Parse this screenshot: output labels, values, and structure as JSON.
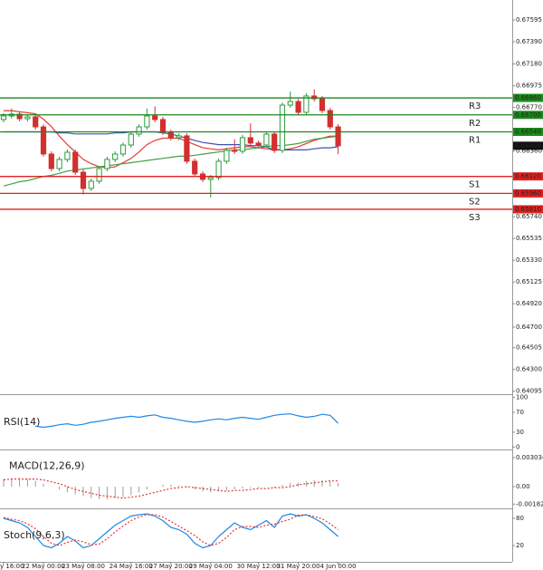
{
  "chart_data": [
    {
      "type": "candlestick",
      "categories": [
        "y 16:00",
        null,
        null,
        null,
        null,
        "22 May 00:00",
        null,
        null,
        null,
        null,
        "23 May 08:00",
        null,
        null,
        null,
        null,
        null,
        "24 May 16:00",
        null,
        null,
        null,
        null,
        "27 May 20:00",
        null,
        null,
        null,
        null,
        "29 May 04:00",
        null,
        null,
        null,
        null,
        null,
        "30 May 12:00",
        null,
        null,
        null,
        null,
        "31 May 20:00",
        null,
        null,
        null,
        null,
        "4 Jun 00:00"
      ],
      "open": [
        0.66656,
        0.6669,
        0.66707,
        0.66664,
        0.66681,
        0.66587,
        0.66331,
        0.66194,
        0.6628,
        0.66348,
        0.6616,
        0.66007,
        0.66075,
        0.66194,
        0.6628,
        0.66331,
        0.66416,
        0.66519,
        0.66587,
        0.6669,
        0.66656,
        0.66536,
        0.66485,
        0.66502,
        0.66263,
        0.66143,
        0.66092,
        0.66109,
        0.66263,
        0.66365,
        0.66357,
        0.66485,
        0.66434,
        0.66416,
        0.66519,
        0.66365,
        0.66792,
        0.66826,
        0.66724,
        0.66878,
        0.66852,
        0.66741,
        0.66587
      ],
      "high": [
        0.66715,
        0.6676,
        0.66732,
        0.66706,
        0.66706,
        0.66612,
        0.66356,
        0.66305,
        0.66373,
        0.66373,
        0.66185,
        0.661,
        0.66219,
        0.66305,
        0.66356,
        0.66441,
        0.66544,
        0.66612,
        0.6676,
        0.6678,
        0.66681,
        0.66561,
        0.66527,
        0.66527,
        0.66288,
        0.66168,
        0.66134,
        0.66288,
        0.6639,
        0.6647,
        0.6651,
        0.6662,
        0.66459,
        0.66544,
        0.66544,
        0.66817,
        0.6692,
        0.66851,
        0.66903,
        0.6694,
        0.66877,
        0.66766,
        0.66612
      ],
      "low": [
        0.6663,
        0.66665,
        0.6664,
        0.66639,
        0.66562,
        0.66306,
        0.66169,
        0.66169,
        0.66255,
        0.66135,
        0.6595,
        0.65982,
        0.6605,
        0.66169,
        0.66255,
        0.66306,
        0.66391,
        0.66494,
        0.66562,
        0.66631,
        0.66511,
        0.6646,
        0.6646,
        0.66238,
        0.66118,
        0.66067,
        0.6592,
        0.66084,
        0.66238,
        0.66332,
        0.66332,
        0.66409,
        0.66391,
        0.66391,
        0.6634,
        0.6634,
        0.66767,
        0.66699,
        0.66699,
        0.66827,
        0.66716,
        0.66562,
        0.6633
      ],
      "close": [
        0.6669,
        0.66707,
        0.66664,
        0.66681,
        0.66587,
        0.66331,
        0.66194,
        0.6628,
        0.66348,
        0.6616,
        0.66007,
        0.66075,
        0.66194,
        0.6628,
        0.66331,
        0.66416,
        0.66519,
        0.66587,
        0.6669,
        0.66656,
        0.66536,
        0.66485,
        0.66502,
        0.66263,
        0.66143,
        0.66092,
        0.66109,
        0.66263,
        0.66365,
        0.66357,
        0.66485,
        0.66434,
        0.66416,
        0.66519,
        0.66365,
        0.66792,
        0.66826,
        0.66724,
        0.66878,
        0.66852,
        0.66741,
        0.66587,
        0.66409
      ],
      "up_color": "#2e9a3e",
      "down_color": "#d32f2f",
      "series": [
        {
          "color": "#e53935",
          "values": [
            0.6674,
            0.6674,
            0.6673,
            0.6672,
            0.6671,
            0.6666,
            0.6659,
            0.665,
            0.6642,
            0.6635,
            0.6628,
            0.6624,
            0.6621,
            0.662,
            0.6621,
            0.6625,
            0.6629,
            0.6635,
            0.6642,
            0.6646,
            0.6648,
            0.6648,
            0.6648,
            0.6645,
            0.6642,
            0.6639,
            0.6638,
            0.6637,
            0.6638,
            0.6639,
            0.664,
            0.664,
            0.6639,
            0.6638,
            0.6637,
            0.6637,
            0.6638,
            0.664,
            0.6643,
            0.6646,
            0.6648,
            0.665,
            0.665
          ]
        },
        {
          "color": "#3f51b5",
          "values": [
            0.6654,
            0.6654,
            0.6654,
            0.6654,
            0.6654,
            0.6654,
            0.6654,
            0.6653,
            0.6653,
            0.6652,
            0.6652,
            0.6652,
            0.6652,
            0.6652,
            0.6653,
            0.6653,
            0.6654,
            0.6654,
            0.6654,
            0.6654,
            0.6653,
            0.6652,
            0.665,
            0.6648,
            0.6646,
            0.6644,
            0.6643,
            0.6642,
            0.6642,
            0.6642,
            0.6642,
            0.6641,
            0.6641,
            0.664,
            0.6637,
            0.6637,
            0.6637,
            0.6637,
            0.6637,
            0.6638,
            0.6639,
            0.6639,
            0.664
          ]
        },
        {
          "color": "#43a047",
          "values": [
            0.6603,
            0.6605,
            0.6607,
            0.6608,
            0.661,
            0.6612,
            0.6613,
            0.6615,
            0.6617,
            0.6618,
            0.6619,
            0.662,
            0.6621,
            0.6622,
            0.6623,
            0.6624,
            0.6625,
            0.6626,
            0.6627,
            0.6628,
            0.6629,
            0.663,
            0.6631,
            0.6631,
            0.6632,
            0.6633,
            0.6634,
            0.6635,
            0.6636,
            0.6637,
            0.6637,
            0.6638,
            0.6639,
            0.664,
            0.6641,
            0.6641,
            0.6642,
            0.6643,
            0.6645,
            0.6647,
            0.6648,
            0.6649,
            0.665
          ]
        }
      ],
      "levels": [
        {
          "name": "R3",
          "value": 0.6686,
          "label": "0.66860",
          "color": "#1b8a1b"
        },
        {
          "name": "R2",
          "value": 0.667,
          "label": "0.66700",
          "color": "#1b8a1b"
        },
        {
          "name": "R1",
          "value": 0.6654,
          "label": "0.66540",
          "color": "#1b8a1b"
        },
        {
          "name": "S1",
          "value": 0.6612,
          "label": "0.66120",
          "color": "#e02020"
        },
        {
          "name": "S2",
          "value": 0.6596,
          "label": "0.65960",
          "color": "#e02020"
        },
        {
          "name": "S3",
          "value": 0.6581,
          "label": "0.65810",
          "color": "#e02020"
        }
      ],
      "current": {
        "value": 0.66409,
        "label": "0.66409"
      },
      "ylim": [
        0.64067,
        0.67783
      ],
      "yticks": [
        0.67595,
        {
          "value": 0.6739,
          "label": "0.67390"
        },
        {
          "value": 0.6718,
          "label": "0.67180"
        },
        0.66975,
        {
          "value": 0.6677,
          "label": "0.66770"
        },
        {
          "value": 0.6636,
          "label": "0.66360"
        },
        {
          "value": 0.6574,
          "label": "0.65740"
        },
        0.65535,
        {
          "value": 0.6533,
          "label": "0.65330"
        },
        0.65125,
        {
          "value": 0.6492,
          "label": "0.64920"
        },
        {
          "value": 0.647,
          "label": "0.64700"
        },
        0.64505,
        {
          "value": 0.643,
          "label": "0.64300"
        },
        0.64095
      ]
    },
    {
      "type": "line",
      "title": "RSI(14)",
      "series": [
        {
          "color": "#1e88e5",
          "values": [
            null,
            null,
            null,
            null,
            42,
            40,
            42,
            45,
            47,
            44,
            46,
            50,
            52,
            55,
            58,
            60,
            62,
            60,
            63,
            65,
            60,
            58,
            55,
            52,
            50,
            52,
            55,
            57,
            55,
            58,
            60,
            58,
            56,
            60,
            64,
            66,
            67,
            63,
            60,
            62,
            66,
            64,
            48
          ]
        }
      ],
      "ylim": [
        -3,
        103
      ],
      "yticks": [
        100,
        70,
        30,
        0
      ]
    },
    {
      "type": "macd",
      "title": "MACD(12,26,9)",
      "values": [
        0.0008,
        0.0009,
        0.0009,
        0.0008,
        0.0006,
        0.0003,
        0,
        -0.0003,
        -0.0006,
        -0.0008,
        -0.001,
        -0.0012,
        -0.0013,
        -0.0013,
        -0.0012,
        -0.0011,
        -0.0009,
        -0.0006,
        -0.0003,
        0,
        0.0002,
        0.0002,
        0.0001,
        -0.0001,
        -0.0003,
        -0.0005,
        -0.0006,
        -0.0005,
        -0.0004,
        -0.0003,
        -0.0002,
        -0.0001,
        -0.0001,
        0,
        -0.0001,
        0.0002,
        0.0004,
        0.0004,
        0.0006,
        0.0007,
        0.0007,
        0.0006,
        0.0004
      ],
      "color": "#9e9e9e",
      "series": [
        {
          "color": "#e53935",
          "values": [
            0.0007,
            0.0008,
            0.0008,
            0.0008,
            0.0008,
            0.0007,
            0.0005,
            0.0003,
            0,
            -0.0003,
            -0.0005,
            -0.0007,
            -0.0009,
            -0.001,
            -0.0011,
            -0.0012,
            -0.0011,
            -0.001,
            -0.0008,
            -0.0006,
            -0.0004,
            -0.0002,
            -0.0001,
            0,
            -0.0001,
            -0.0002,
            -0.0003,
            -0.0004,
            -0.0005,
            -0.0004,
            -0.0004,
            -0.0003,
            -0.0002,
            -0.0002,
            -0.0001,
            -0.0001,
            0,
            0.0002,
            0.0003,
            0.0004,
            0.0005,
            0.0006,
            0.0006
          ]
        }
      ],
      "ylim": [
        -0.00218,
        0.00379
      ],
      "yticks": [
        0.003034,
        {
          "value": 0,
          "label": "0.00"
        },
        -0.001826
      ]
    },
    {
      "type": "line",
      "title": "Stoch(9,6,3)",
      "series": [
        {
          "color": "#1e88e5",
          "values": [
            80,
            75,
            70,
            60,
            40,
            20,
            15,
            25,
            40,
            30,
            15,
            20,
            35,
            50,
            65,
            75,
            85,
            88,
            90,
            85,
            75,
            60,
            55,
            45,
            25,
            15,
            20,
            40,
            55,
            70,
            60,
            55,
            65,
            75,
            60,
            85,
            90,
            85,
            88,
            80,
            70,
            55,
            40
          ]
        },
        {
          "color": "#e53935",
          "dashed": true,
          "values": [
            82,
            78,
            75,
            68,
            57,
            40,
            25,
            20,
            27,
            32,
            28,
            22,
            23,
            35,
            50,
            63,
            75,
            83,
            88,
            88,
            83,
            73,
            63,
            53,
            42,
            28,
            20,
            25,
            38,
            55,
            62,
            62,
            60,
            65,
            67,
            73,
            78,
            87,
            88,
            84,
            79,
            68,
            55
          ]
        }
      ],
      "ylim": [
        -16,
        100
      ],
      "yticks": [
        80,
        20
      ]
    }
  ]
}
